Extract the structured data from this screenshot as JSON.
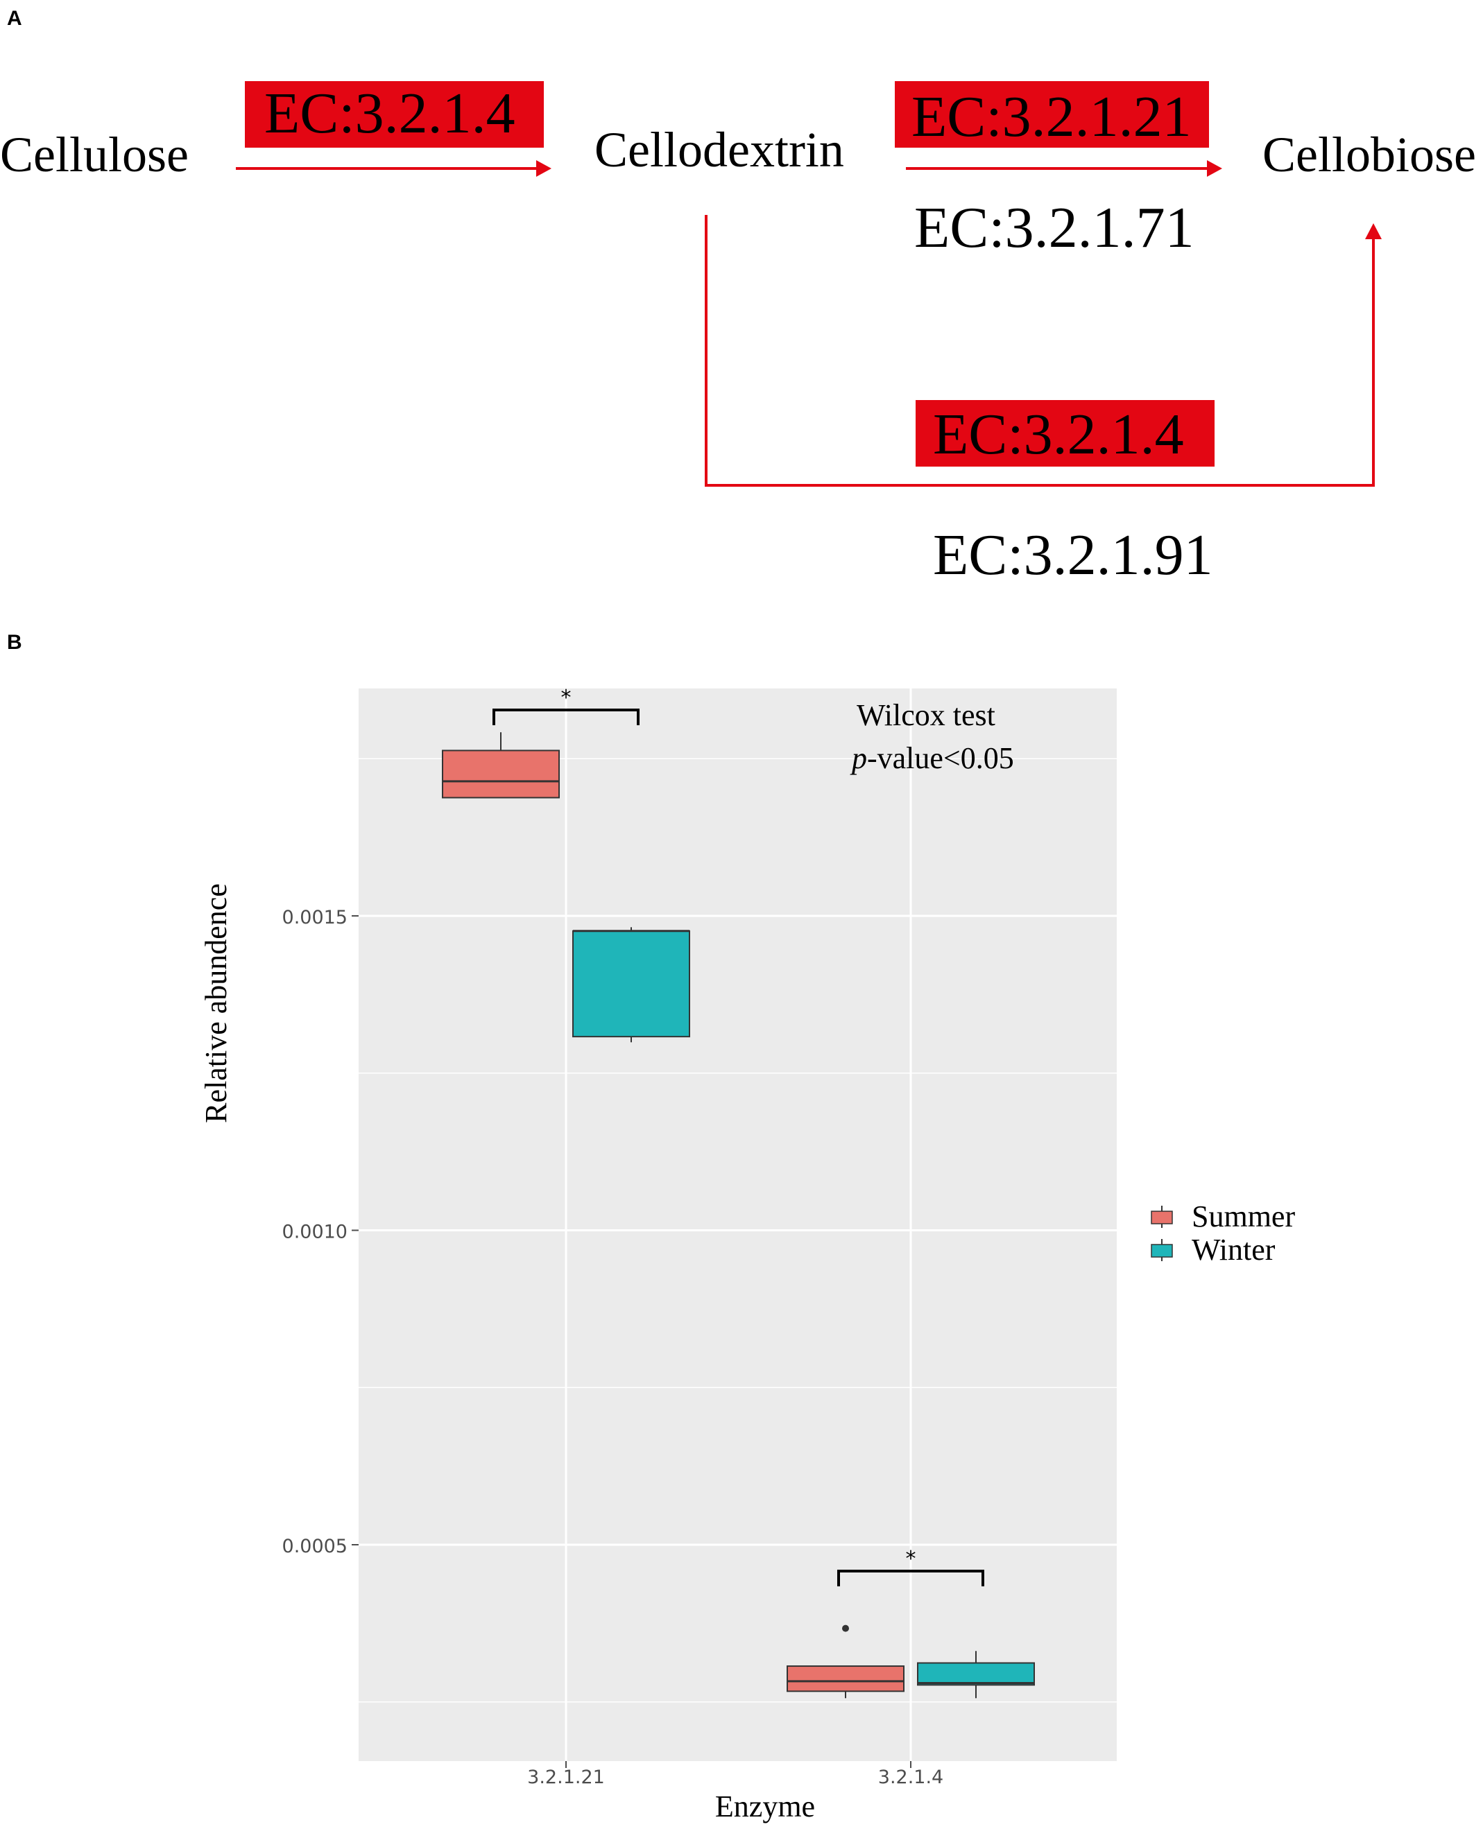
{
  "panel_a": {
    "label": "A",
    "nodes": {
      "cellulose": "Cellulose",
      "cellodextrin": "Cellodextrin",
      "cellobiose": "Cellobiose"
    },
    "enzymes": {
      "e1": "EC:3.2.1.4",
      "e2": "EC:3.2.1.21",
      "e3": "EC:3.2.1.71",
      "e4": "EC:3.2.1.4",
      "e5": "EC:3.2.1.91"
    },
    "colors": {
      "highlight": "#e30613",
      "arrow": "#e30613"
    }
  },
  "panel_b": {
    "label": "B"
  },
  "chart_data": {
    "type": "boxplot",
    "xlabel": "Enzyme",
    "ylabel": "Relative abundence",
    "categories": [
      "3.2.1.21",
      "3.2.1.4"
    ],
    "y_ticks": [
      "0.0005",
      "0.0010",
      "0.0015"
    ],
    "ylim": [
      0.000165,
      0.00183
    ],
    "grid": true,
    "legend": {
      "position": "right",
      "items": [
        "Summer",
        "Winter"
      ]
    },
    "annotation": {
      "line1": "Wilcox test",
      "line2_italic": "p",
      "line2_rest": "-value<0.05"
    },
    "significance": [
      "*",
      "*"
    ],
    "series": [
      {
        "name": "Summer",
        "color": "#e8736b",
        "boxes": [
          {
            "category": "3.2.1.21",
            "min": 0.001688,
            "q1": 0.001688,
            "median": 0.001714,
            "q3": 0.001763,
            "max": 0.001792,
            "outliers": []
          },
          {
            "category": "3.2.1.4",
            "min": 0.000256,
            "q1": 0.000267,
            "median": 0.000283,
            "q3": 0.000307,
            "max": 0.000307,
            "outliers": [
              0.000367
            ]
          }
        ]
      },
      {
        "name": "Winter",
        "color": "#1fb5b9",
        "boxes": [
          {
            "category": "3.2.1.21",
            "min": 0.001299,
            "q1": 0.001308,
            "median": 0.001476,
            "q3": 0.001476,
            "max": 0.001482,
            "outliers": []
          },
          {
            "category": "3.2.1.4",
            "min": 0.000256,
            "q1": 0.000277,
            "median": 0.00028,
            "q3": 0.000312,
            "max": 0.000331,
            "outliers": []
          }
        ]
      }
    ]
  }
}
